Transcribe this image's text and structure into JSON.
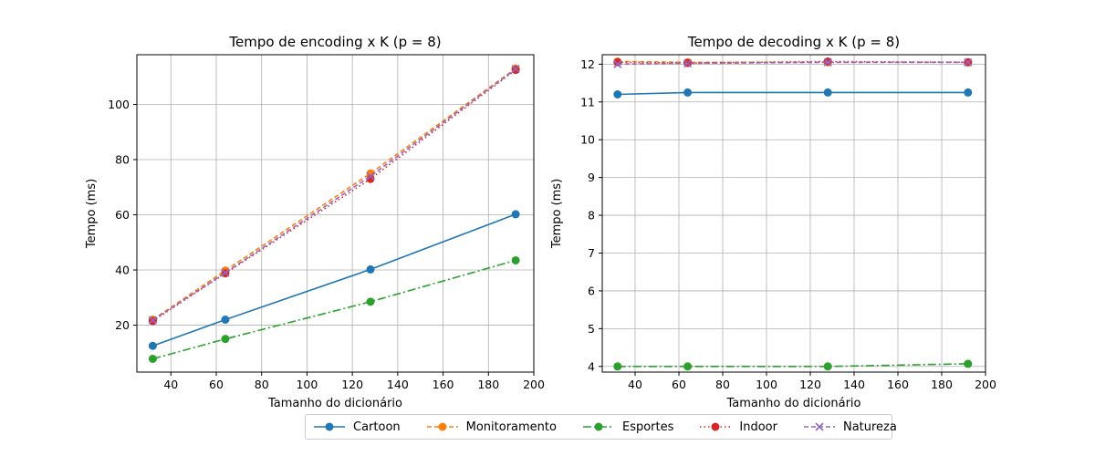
{
  "chart_data": [
    {
      "type": "line",
      "title": "Tempo de encoding x K (p = 8)",
      "xlabel": "Tamanho do dicionário",
      "ylabel": "Tempo (ms)",
      "xlim": [
        25,
        200
      ],
      "ylim": [
        3,
        118
      ],
      "xticks": [
        40,
        60,
        80,
        100,
        120,
        140,
        160,
        180,
        200
      ],
      "yticks": [
        20,
        40,
        60,
        80,
        100
      ],
      "grid": true,
      "x": [
        32,
        64,
        128,
        192
      ],
      "series": [
        {
          "name": "Cartoon",
          "values": [
            12.5,
            22.0,
            40.2,
            60.2
          ]
        },
        {
          "name": "Monitoramento",
          "values": [
            22.0,
            39.8,
            75.0,
            113.0
          ]
        },
        {
          "name": "Esportes",
          "values": [
            7.8,
            15.0,
            28.5,
            43.5
          ]
        },
        {
          "name": "Indoor",
          "values": [
            21.5,
            38.8,
            73.0,
            112.5
          ]
        },
        {
          "name": "Natureza",
          "values": [
            21.8,
            39.0,
            74.0,
            112.8
          ]
        }
      ]
    },
    {
      "type": "line",
      "title": "Tempo de decoding x K (p = 8)",
      "xlabel": "Tamanho do dicionário",
      "ylabel": "Tempo (ms)",
      "xlim": [
        25,
        200
      ],
      "ylim": [
        3.85,
        12.25
      ],
      "xticks": [
        40,
        60,
        80,
        100,
        120,
        140,
        160,
        180,
        200
      ],
      "yticks": [
        4,
        5,
        6,
        7,
        8,
        9,
        10,
        11,
        12
      ],
      "grid": true,
      "x": [
        32,
        64,
        128,
        192
      ],
      "series": [
        {
          "name": "Cartoon",
          "values": [
            11.2,
            11.25,
            11.25,
            11.25
          ]
        },
        {
          "name": "Monitoramento",
          "values": [
            12.07,
            12.05,
            12.05,
            12.05
          ]
        },
        {
          "name": "Esportes",
          "values": [
            4.0,
            4.0,
            4.0,
            4.07
          ]
        },
        {
          "name": "Indoor",
          "values": [
            12.05,
            12.03,
            12.07,
            12.05
          ]
        },
        {
          "name": "Natureza",
          "values": [
            12.0,
            12.02,
            12.05,
            12.05
          ]
        }
      ]
    }
  ],
  "series_styles": [
    {
      "color": "#1f77b4",
      "dash": "",
      "marker": "circle"
    },
    {
      "color": "#ff7f0e",
      "dash": "5,3",
      "marker": "circle"
    },
    {
      "color": "#2ca02c",
      "dash": "9,3,2,3",
      "marker": "circle"
    },
    {
      "color": "#d62728",
      "dash": "1.5,3",
      "marker": "circle"
    },
    {
      "color": "#9467bd",
      "dash": "5,3",
      "marker": "x"
    }
  ],
  "legend": {
    "placement": "bottom-center",
    "items": [
      "Cartoon",
      "Monitoramento",
      "Esportes",
      "Indoor",
      "Natureza"
    ]
  }
}
